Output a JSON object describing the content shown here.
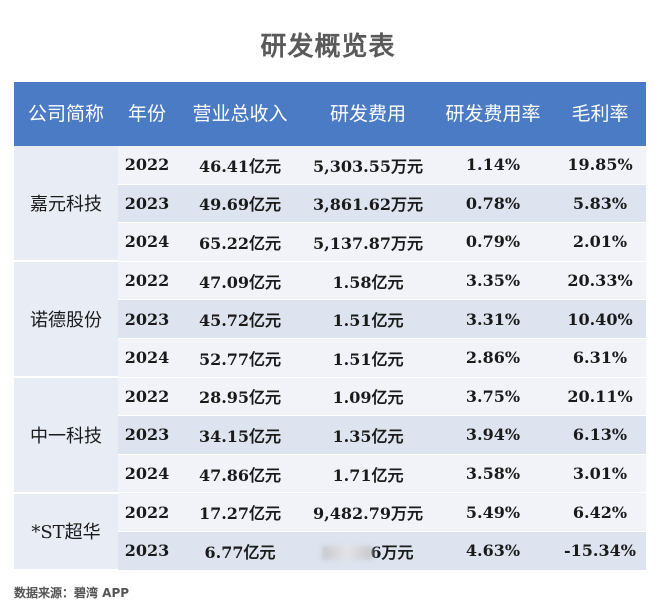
{
  "title": "研发概览表",
  "headers": [
    "公司简称",
    "年份",
    "营业总收入",
    "研发费用",
    "研发费用率",
    "毛利率"
  ],
  "companies": [
    {
      "name": "嘉元科技",
      "rows": [
        {
          "year": "2022",
          "revenue": "46.41亿元",
          "rd": "5,303.55万元",
          "rate": "1.14%",
          "margin": "19.85%"
        },
        {
          "year": "2023",
          "revenue": "49.69亿元",
          "rd": "3,861.62万元",
          "rate": "0.78%",
          "margin": "5.83%"
        },
        {
          "year": "2024",
          "revenue": "65.22亿元",
          "rd": "5,137.87万元",
          "rate": "0.79%",
          "margin": "2.01%"
        }
      ]
    },
    {
      "name": "诺德股份",
      "rows": [
        {
          "year": "2022",
          "revenue": "47.09亿元",
          "rd": "1.58亿元",
          "rate": "3.35%",
          "margin": "20.33%"
        },
        {
          "year": "2023",
          "revenue": "45.72亿元",
          "rd": "1.51亿元",
          "rate": "3.31%",
          "margin": "10.40%"
        },
        {
          "year": "2024",
          "revenue": "52.77亿元",
          "rd": "1.51亿元",
          "rate": "2.86%",
          "margin": "6.31%"
        }
      ]
    },
    {
      "name": "中一科技",
      "rows": [
        {
          "year": "2022",
          "revenue": "28.95亿元",
          "rd": "1.09亿元",
          "rate": "3.75%",
          "margin": "20.11%"
        },
        {
          "year": "2023",
          "revenue": "34.15亿元",
          "rd": "1.35亿元",
          "rate": "3.94%",
          "margin": "6.13%"
        },
        {
          "year": "2024",
          "revenue": "47.86亿元",
          "rd": "1.71亿元",
          "rate": "3.58%",
          "margin": "3.01%"
        }
      ]
    },
    {
      "name": "*ST超华",
      "rows": [
        {
          "year": "2022",
          "revenue": "17.27亿元",
          "rd": "9,482.79万元",
          "rate": "5.49%",
          "margin": "6.42%"
        },
        {
          "year": "2023",
          "revenue": "6.77亿元",
          "rd": "6万元",
          "rate": "4.63%",
          "margin": "-15.34%",
          "rd_obscured": true
        }
      ]
    }
  ],
  "source": "数据来源：碧湾 APP"
}
